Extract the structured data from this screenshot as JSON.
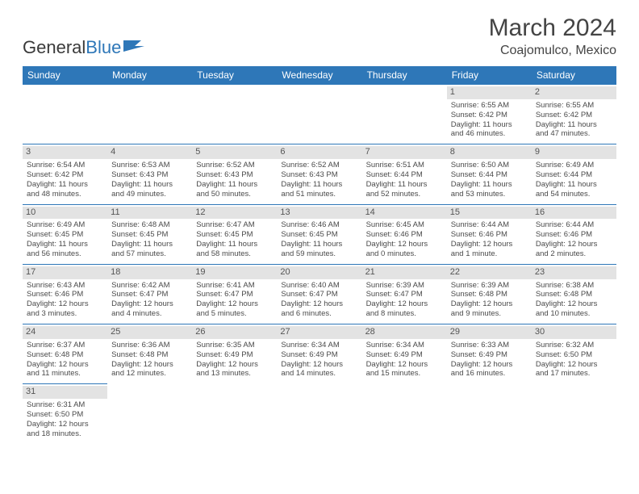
{
  "logo": {
    "text1": "General",
    "text2": "Blue"
  },
  "title": "March 2024",
  "location": "Coajomulco, Mexico",
  "colors": {
    "header_bg": "#2e77b8",
    "header_fg": "#ffffff",
    "daynum_bg": "#e3e3e3",
    "row_border": "#2e77b8",
    "text": "#4a4a4a"
  },
  "day_headers": [
    "Sunday",
    "Monday",
    "Tuesday",
    "Wednesday",
    "Thursday",
    "Friday",
    "Saturday"
  ],
  "weeks": [
    [
      {
        "empty": true
      },
      {
        "empty": true
      },
      {
        "empty": true
      },
      {
        "empty": true
      },
      {
        "empty": true
      },
      {
        "n": "1",
        "sr": "Sunrise: 6:55 AM",
        "ss": "Sunset: 6:42 PM",
        "d1": "Daylight: 11 hours",
        "d2": "and 46 minutes."
      },
      {
        "n": "2",
        "sr": "Sunrise: 6:55 AM",
        "ss": "Sunset: 6:42 PM",
        "d1": "Daylight: 11 hours",
        "d2": "and 47 minutes."
      }
    ],
    [
      {
        "n": "3",
        "sr": "Sunrise: 6:54 AM",
        "ss": "Sunset: 6:42 PM",
        "d1": "Daylight: 11 hours",
        "d2": "and 48 minutes."
      },
      {
        "n": "4",
        "sr": "Sunrise: 6:53 AM",
        "ss": "Sunset: 6:43 PM",
        "d1": "Daylight: 11 hours",
        "d2": "and 49 minutes."
      },
      {
        "n": "5",
        "sr": "Sunrise: 6:52 AM",
        "ss": "Sunset: 6:43 PM",
        "d1": "Daylight: 11 hours",
        "d2": "and 50 minutes."
      },
      {
        "n": "6",
        "sr": "Sunrise: 6:52 AM",
        "ss": "Sunset: 6:43 PM",
        "d1": "Daylight: 11 hours",
        "d2": "and 51 minutes."
      },
      {
        "n": "7",
        "sr": "Sunrise: 6:51 AM",
        "ss": "Sunset: 6:44 PM",
        "d1": "Daylight: 11 hours",
        "d2": "and 52 minutes."
      },
      {
        "n": "8",
        "sr": "Sunrise: 6:50 AM",
        "ss": "Sunset: 6:44 PM",
        "d1": "Daylight: 11 hours",
        "d2": "and 53 minutes."
      },
      {
        "n": "9",
        "sr": "Sunrise: 6:49 AM",
        "ss": "Sunset: 6:44 PM",
        "d1": "Daylight: 11 hours",
        "d2": "and 54 minutes."
      }
    ],
    [
      {
        "n": "10",
        "sr": "Sunrise: 6:49 AM",
        "ss": "Sunset: 6:45 PM",
        "d1": "Daylight: 11 hours",
        "d2": "and 56 minutes."
      },
      {
        "n": "11",
        "sr": "Sunrise: 6:48 AM",
        "ss": "Sunset: 6:45 PM",
        "d1": "Daylight: 11 hours",
        "d2": "and 57 minutes."
      },
      {
        "n": "12",
        "sr": "Sunrise: 6:47 AM",
        "ss": "Sunset: 6:45 PM",
        "d1": "Daylight: 11 hours",
        "d2": "and 58 minutes."
      },
      {
        "n": "13",
        "sr": "Sunrise: 6:46 AM",
        "ss": "Sunset: 6:45 PM",
        "d1": "Daylight: 11 hours",
        "d2": "and 59 minutes."
      },
      {
        "n": "14",
        "sr": "Sunrise: 6:45 AM",
        "ss": "Sunset: 6:46 PM",
        "d1": "Daylight: 12 hours",
        "d2": "and 0 minutes."
      },
      {
        "n": "15",
        "sr": "Sunrise: 6:44 AM",
        "ss": "Sunset: 6:46 PM",
        "d1": "Daylight: 12 hours",
        "d2": "and 1 minute."
      },
      {
        "n": "16",
        "sr": "Sunrise: 6:44 AM",
        "ss": "Sunset: 6:46 PM",
        "d1": "Daylight: 12 hours",
        "d2": "and 2 minutes."
      }
    ],
    [
      {
        "n": "17",
        "sr": "Sunrise: 6:43 AM",
        "ss": "Sunset: 6:46 PM",
        "d1": "Daylight: 12 hours",
        "d2": "and 3 minutes."
      },
      {
        "n": "18",
        "sr": "Sunrise: 6:42 AM",
        "ss": "Sunset: 6:47 PM",
        "d1": "Daylight: 12 hours",
        "d2": "and 4 minutes."
      },
      {
        "n": "19",
        "sr": "Sunrise: 6:41 AM",
        "ss": "Sunset: 6:47 PM",
        "d1": "Daylight: 12 hours",
        "d2": "and 5 minutes."
      },
      {
        "n": "20",
        "sr": "Sunrise: 6:40 AM",
        "ss": "Sunset: 6:47 PM",
        "d1": "Daylight: 12 hours",
        "d2": "and 6 minutes."
      },
      {
        "n": "21",
        "sr": "Sunrise: 6:39 AM",
        "ss": "Sunset: 6:47 PM",
        "d1": "Daylight: 12 hours",
        "d2": "and 8 minutes."
      },
      {
        "n": "22",
        "sr": "Sunrise: 6:39 AM",
        "ss": "Sunset: 6:48 PM",
        "d1": "Daylight: 12 hours",
        "d2": "and 9 minutes."
      },
      {
        "n": "23",
        "sr": "Sunrise: 6:38 AM",
        "ss": "Sunset: 6:48 PM",
        "d1": "Daylight: 12 hours",
        "d2": "and 10 minutes."
      }
    ],
    [
      {
        "n": "24",
        "sr": "Sunrise: 6:37 AM",
        "ss": "Sunset: 6:48 PM",
        "d1": "Daylight: 12 hours",
        "d2": "and 11 minutes."
      },
      {
        "n": "25",
        "sr": "Sunrise: 6:36 AM",
        "ss": "Sunset: 6:48 PM",
        "d1": "Daylight: 12 hours",
        "d2": "and 12 minutes."
      },
      {
        "n": "26",
        "sr": "Sunrise: 6:35 AM",
        "ss": "Sunset: 6:49 PM",
        "d1": "Daylight: 12 hours",
        "d2": "and 13 minutes."
      },
      {
        "n": "27",
        "sr": "Sunrise: 6:34 AM",
        "ss": "Sunset: 6:49 PM",
        "d1": "Daylight: 12 hours",
        "d2": "and 14 minutes."
      },
      {
        "n": "28",
        "sr": "Sunrise: 6:34 AM",
        "ss": "Sunset: 6:49 PM",
        "d1": "Daylight: 12 hours",
        "d2": "and 15 minutes."
      },
      {
        "n": "29",
        "sr": "Sunrise: 6:33 AM",
        "ss": "Sunset: 6:49 PM",
        "d1": "Daylight: 12 hours",
        "d2": "and 16 minutes."
      },
      {
        "n": "30",
        "sr": "Sunrise: 6:32 AM",
        "ss": "Sunset: 6:50 PM",
        "d1": "Daylight: 12 hours",
        "d2": "and 17 minutes."
      }
    ],
    [
      {
        "n": "31",
        "sr": "Sunrise: 6:31 AM",
        "ss": "Sunset: 6:50 PM",
        "d1": "Daylight: 12 hours",
        "d2": "and 18 minutes."
      },
      {
        "empty": true
      },
      {
        "empty": true
      },
      {
        "empty": true
      },
      {
        "empty": true
      },
      {
        "empty": true
      },
      {
        "empty": true
      }
    ]
  ]
}
